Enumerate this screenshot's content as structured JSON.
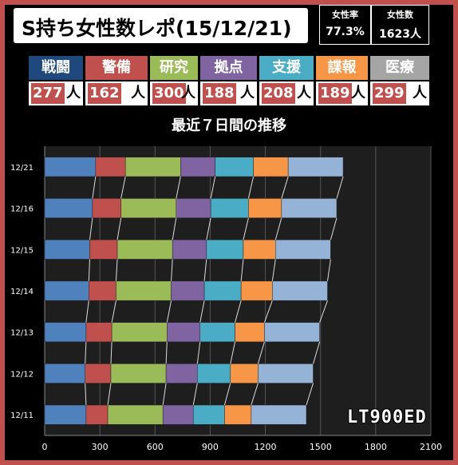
{
  "header": {
    "title": "S持ち女性数レポ(15/12/21)",
    "female_rate_label": "女性率",
    "female_rate_value": "77.3%",
    "female_count_label": "女性数",
    "female_count_value": "1623人"
  },
  "categories": [
    {
      "label": "戦闘",
      "count": "277",
      "unit": "人",
      "color": "#1f497d"
    },
    {
      "label": "警備",
      "count": "162",
      "unit": "人",
      "color": "#c0504d"
    },
    {
      "label": "研究",
      "count": "300",
      "unit": "人",
      "color": "#9bbb59"
    },
    {
      "label": "拠点",
      "count": "188",
      "unit": "人",
      "color": "#8064a2"
    },
    {
      "label": "支援",
      "count": "208",
      "unit": "人",
      "color": "#4bacc6"
    },
    {
      "label": "諜報",
      "count": "189",
      "unit": "人",
      "color": "#f79646"
    },
    {
      "label": "医療",
      "count": "299",
      "unit": "人",
      "color": "#a5a5a5"
    }
  ],
  "watermark": "LT900ED",
  "chart_data": {
    "type": "bar",
    "orientation": "horizontal",
    "stacked": true,
    "title": "最近７日間の推移",
    "categories": [
      "12/21",
      "12/16",
      "12/15",
      "12/14",
      "12/13",
      "12/12",
      "12/11"
    ],
    "series": [
      {
        "name": "戦闘",
        "color": "#4f81bd",
        "values": [
          277,
          260,
          245,
          240,
          225,
          220,
          225
        ]
      },
      {
        "name": "警備",
        "color": "#c0504d",
        "values": [
          162,
          155,
          150,
          148,
          140,
          140,
          118
        ]
      },
      {
        "name": "研究",
        "color": "#9bbb59",
        "values": [
          300,
          300,
          300,
          300,
          300,
          300,
          300
        ]
      },
      {
        "name": "拠点",
        "color": "#8064a2",
        "values": [
          188,
          188,
          185,
          180,
          180,
          170,
          165
        ]
      },
      {
        "name": "支援",
        "color": "#4bacc6",
        "values": [
          208,
          205,
          200,
          200,
          190,
          180,
          170
        ]
      },
      {
        "name": "諜報",
        "color": "#f79646",
        "values": [
          189,
          180,
          175,
          170,
          160,
          150,
          145
        ]
      },
      {
        "name": "医療",
        "color": "#95b3d7",
        "values": [
          299,
          300,
          300,
          300,
          300,
          300,
          300
        ]
      }
    ],
    "xlim": [
      0,
      2100
    ],
    "xticks": [
      "0",
      "300",
      "600",
      "900",
      "1200",
      "1500",
      "1800",
      "2100"
    ],
    "grid": true,
    "series_lines": true
  }
}
